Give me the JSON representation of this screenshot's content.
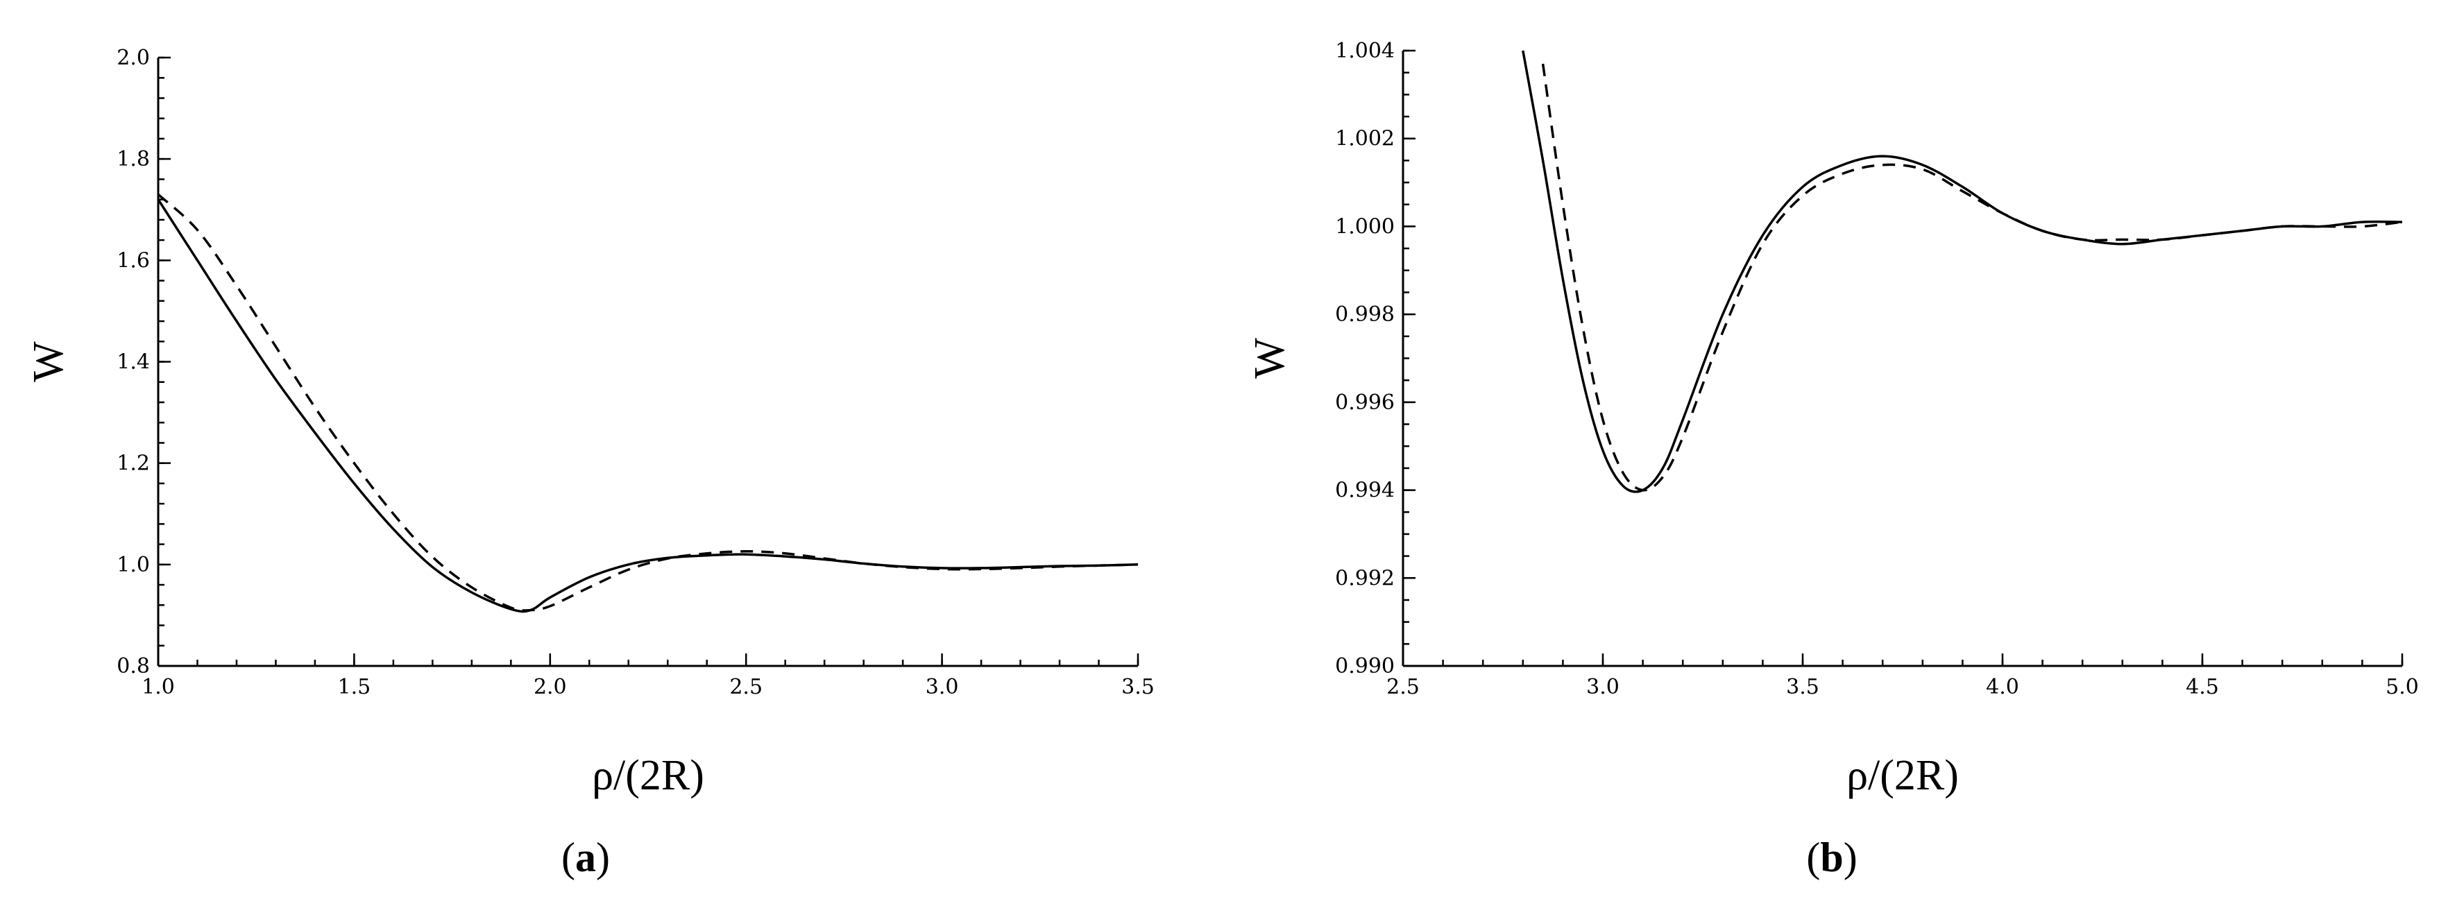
{
  "chart_data": [
    {
      "type": "line",
      "panel_label": "a",
      "xlabel": "ρ/(2R)",
      "ylabel": "W",
      "xlim": [
        1.0,
        3.5
      ],
      "ylim": [
        0.8,
        2.0
      ],
      "x_ticks_major": [
        1.0,
        1.5,
        2.0,
        2.5,
        3.0,
        3.5
      ],
      "x_tick_labels": [
        "1.0",
        "1.5",
        "2.0",
        "2.5",
        "3.0",
        "3.5"
      ],
      "y_ticks_major": [
        0.8,
        1.0,
        1.2,
        1.4,
        1.6,
        1.8,
        2.0
      ],
      "y_tick_labels": [
        "0.8",
        "1.0",
        "1.2",
        "1.4",
        "1.6",
        "1.8",
        "2.0"
      ],
      "x_minor_step": 0.1,
      "y_minor_step": 0.04,
      "grid": false,
      "legend": "none",
      "series": [
        {
          "style": "solid",
          "x": [
            1.0,
            1.1,
            1.2,
            1.3,
            1.4,
            1.5,
            1.6,
            1.7,
            1.8,
            1.9,
            1.95,
            2.0,
            2.1,
            2.2,
            2.3,
            2.4,
            2.5,
            2.6,
            2.7,
            2.8,
            2.9,
            3.0,
            3.1,
            3.2,
            3.3,
            3.4,
            3.5
          ],
          "y": [
            1.72,
            1.6,
            1.48,
            1.365,
            1.26,
            1.16,
            1.07,
            0.995,
            0.945,
            0.912,
            0.91,
            0.935,
            0.975,
            1.0,
            1.013,
            1.018,
            1.02,
            1.016,
            1.01,
            1.002,
            0.996,
            0.993,
            0.993,
            0.995,
            0.997,
            0.998,
            1.0
          ]
        },
        {
          "style": "dashed",
          "x": [
            1.0,
            1.1,
            1.2,
            1.3,
            1.4,
            1.5,
            1.6,
            1.7,
            1.8,
            1.9,
            1.95,
            2.0,
            2.1,
            2.2,
            2.3,
            2.4,
            2.5,
            2.6,
            2.7,
            2.8,
            2.9,
            3.0,
            3.1,
            3.2,
            3.3,
            3.4,
            3.5
          ],
          "y": [
            1.73,
            1.66,
            1.55,
            1.43,
            1.31,
            1.2,
            1.1,
            1.015,
            0.955,
            0.915,
            0.91,
            0.918,
            0.955,
            0.99,
            1.012,
            1.022,
            1.026,
            1.022,
            1.012,
            1.002,
            0.995,
            0.991,
            0.991,
            0.993,
            0.996,
            0.998,
            1.0
          ]
        }
      ]
    },
    {
      "type": "line",
      "panel_label": "b",
      "xlabel": "ρ/(2R)",
      "ylabel": "W",
      "xlim": [
        2.5,
        5.0
      ],
      "ylim": [
        0.99,
        1.004
      ],
      "x_ticks_major": [
        2.5,
        3.0,
        3.5,
        4.0,
        4.5,
        5.0
      ],
      "x_tick_labels": [
        "2.5",
        "3.0",
        "3.5",
        "4.0",
        "4.5",
        "5.0"
      ],
      "y_ticks_major": [
        0.99,
        0.992,
        0.994,
        0.996,
        0.998,
        1.0,
        1.002,
        1.004
      ],
      "y_tick_labels": [
        "0.990",
        "0.992",
        "0.994",
        "0.996",
        "0.998",
        "1.000",
        "1.002",
        "1.004"
      ],
      "x_minor_step": 0.1,
      "y_minor_step": 0.0005,
      "grid": false,
      "legend": "none",
      "series": [
        {
          "style": "solid",
          "x": [
            2.8,
            2.85,
            2.9,
            2.95,
            3.0,
            3.05,
            3.1,
            3.15,
            3.2,
            3.3,
            3.4,
            3.5,
            3.6,
            3.7,
            3.8,
            3.9,
            4.0,
            4.1,
            4.2,
            4.3,
            4.4,
            4.5,
            4.6,
            4.7,
            4.8,
            4.9,
            5.0
          ],
          "y": [
            1.004,
            1.0015,
            0.9988,
            0.9965,
            0.9949,
            0.9941,
            0.994,
            0.9945,
            0.9956,
            0.998,
            0.9998,
            1.0009,
            1.0014,
            1.0016,
            1.0014,
            1.0009,
            1.0003,
            0.9999,
            0.9997,
            0.9996,
            0.9997,
            0.9998,
            0.9999,
            1.0,
            1.0,
            1.0001,
            1.0001
          ]
        },
        {
          "style": "dashed",
          "x": [
            2.85,
            2.9,
            2.95,
            3.0,
            3.05,
            3.1,
            3.15,
            3.2,
            3.3,
            3.4,
            3.5,
            3.6,
            3.7,
            3.8,
            3.9,
            4.0,
            4.1,
            4.2,
            4.3,
            4.4,
            4.5,
            4.6,
            4.7,
            4.8,
            4.9,
            5.0
          ],
          "y": [
            1.0037,
            1.0005,
            0.9977,
            0.9956,
            0.9944,
            0.994,
            0.9943,
            0.9952,
            0.9976,
            0.9996,
            1.0007,
            1.0012,
            1.0014,
            1.0013,
            1.0008,
            1.0003,
            0.9999,
            0.9997,
            0.9997,
            0.9997,
            0.9998,
            0.9999,
            1.0,
            1.0,
            1.0,
            1.0001
          ]
        }
      ]
    }
  ]
}
